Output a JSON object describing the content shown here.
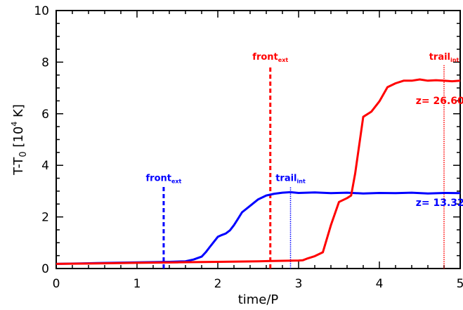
{
  "chart_data": {
    "type": "line",
    "xlabel": "time/P",
    "ylabel": {
      "main": "T-T",
      "main_sub": "0",
      "bracket_open": " [10",
      "exponent": "4",
      "unit": " K]"
    },
    "xlim": [
      0,
      5
    ],
    "ylim": [
      0,
      10
    ],
    "x_ticks": [
      "0",
      "1",
      "2",
      "3",
      "4",
      "5"
    ],
    "y_ticks": [
      "0",
      "2",
      "4",
      "6",
      "8",
      "10"
    ],
    "grid": false,
    "series": [
      {
        "name": "z= 13.32",
        "color": "#0000ff",
        "x": [
          0,
          0.5,
          1.0,
          1.4,
          1.6,
          1.7,
          1.8,
          1.85,
          1.9,
          1.95,
          2.0,
          2.05,
          2.1,
          2.15,
          2.2,
          2.25,
          2.3,
          2.4,
          2.5,
          2.6,
          2.7,
          2.8,
          2.9,
          3.0,
          3.2,
          3.4,
          3.6,
          3.8,
          4.0,
          4.2,
          4.4,
          4.6,
          4.8,
          5.0
        ],
        "y": [
          0,
          0.03,
          0.06,
          0.08,
          0.1,
          0.17,
          0.28,
          0.45,
          0.65,
          0.85,
          1.05,
          1.12,
          1.18,
          1.3,
          1.5,
          1.75,
          2.0,
          2.25,
          2.5,
          2.65,
          2.72,
          2.76,
          2.78,
          2.75,
          2.77,
          2.74,
          2.76,
          2.73,
          2.75,
          2.74,
          2.76,
          2.73,
          2.75,
          2.74
        ]
      },
      {
        "name": "z= 26.60",
        "color": "#ff0000",
        "x": [
          0,
          0.5,
          1.0,
          1.5,
          2.0,
          2.5,
          2.8,
          3.0,
          3.05,
          3.1,
          3.2,
          3.3,
          3.4,
          3.5,
          3.6,
          3.65,
          3.7,
          3.8,
          3.9,
          4.0,
          4.1,
          4.2,
          4.3,
          4.4,
          4.5,
          4.6,
          4.7,
          4.8,
          4.9,
          5.0
        ],
        "y": [
          0,
          0.02,
          0.04,
          0.06,
          0.08,
          0.1,
          0.12,
          0.13,
          0.14,
          0.2,
          0.3,
          0.45,
          1.5,
          2.4,
          2.55,
          2.65,
          3.5,
          5.7,
          5.9,
          6.3,
          6.85,
          7.0,
          7.1,
          7.1,
          7.15,
          7.1,
          7.12,
          7.1,
          7.08,
          7.1
        ]
      }
    ],
    "annotations": [
      {
        "text": "z= 26.60",
        "color": "#ff0000",
        "x": 4.75,
        "y": 6.2
      },
      {
        "text": "z= 13.32",
        "color": "#0000ff",
        "x": 4.75,
        "y": 2.25
      }
    ],
    "markers": [
      {
        "label": "front",
        "sub": "ext",
        "color": "#0000ff",
        "x": 1.33,
        "y_top": 3.0,
        "style": "dashed"
      },
      {
        "label": "trail",
        "sub": "int",
        "color": "#0000ff",
        "x": 2.9,
        "y_top": 3.0,
        "style": "dotted"
      },
      {
        "label": "front",
        "sub": "ext",
        "color": "#ff0000",
        "x": 2.65,
        "y_top": 7.7,
        "style": "dashed"
      },
      {
        "label": "trail",
        "sub": "int",
        "color": "#ff0000",
        "x": 4.8,
        "y_top": 7.7,
        "style": "dotted"
      }
    ]
  }
}
